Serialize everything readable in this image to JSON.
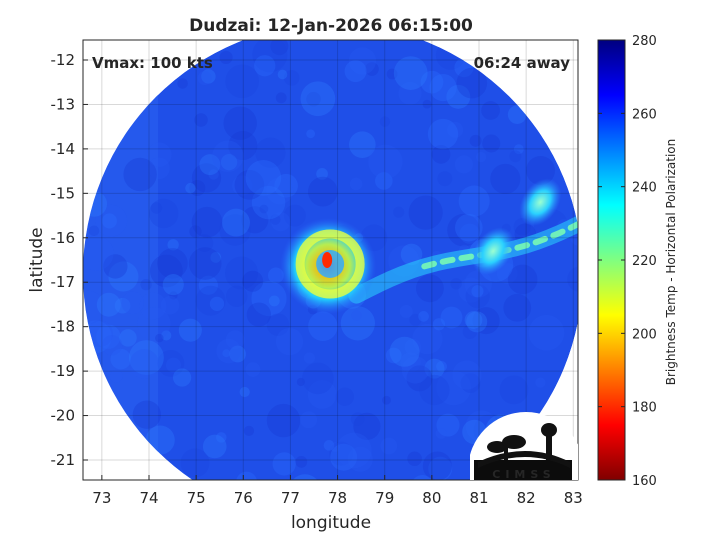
{
  "chart_data": {
    "type": "heatmap",
    "title": "Dudzai: 12-Jan-2026 06:15:00",
    "xlabel": "longitude",
    "ylabel": "latitude",
    "xlim": [
      72.6,
      83.1
    ],
    "ylim": [
      -21.45,
      -11.55
    ],
    "xticks": [
      73,
      74,
      75,
      76,
      77,
      78,
      79,
      80,
      81,
      82,
      83
    ],
    "yticks": [
      -12,
      -13,
      -14,
      -15,
      -16,
      -17,
      -18,
      -19,
      -20,
      -21
    ],
    "grid": true,
    "annotations": {
      "left": "Vmax: 100 kts",
      "right": "06:24 away"
    },
    "colorbar": {
      "label": "Brightness Temp - Horizontal Polarization",
      "range": [
        160,
        280
      ],
      "ticks": [
        160,
        180,
        200,
        220,
        240,
        260,
        280
      ],
      "colormap": "jet"
    },
    "swath": {
      "center_lon": 77.9,
      "center_lat": -16.8,
      "radius_deg": 5.3
    },
    "storm_center": {
      "lon": 77.8,
      "lat": -16.5
    },
    "features": [
      {
        "name": "eye",
        "lon": 77.8,
        "lat": -16.5,
        "value": 195
      },
      {
        "name": "eyewall",
        "lon": 77.8,
        "lat": -16.6,
        "value": 220
      },
      {
        "name": "outer-band",
        "lon": 81.3,
        "lat": -16.3,
        "value": 220
      },
      {
        "name": "coastal-band",
        "lon": 82.3,
        "lat": -15.2,
        "value": 230
      }
    ],
    "logo_text": "CIMSS"
  }
}
